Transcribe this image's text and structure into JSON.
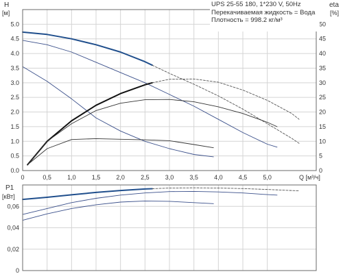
{
  "chart_data": [
    {
      "type": "line",
      "title": "UPS 25-55 180, 1*230 V, 50Hz",
      "notes": [
        "Перекачиваемая жидкость = Вода",
        "Плотность = 998.2 кг/м³"
      ],
      "xlabel": "Q [м³/ч]",
      "ylabel_left": "H",
      "ylabel_left_unit": "[м]",
      "ylabel_right": "eta",
      "ylabel_right_unit": "[%]",
      "xlim": [
        0,
        6.0
      ],
      "ylim_left": [
        0,
        5.5
      ],
      "ylim_right": [
        0,
        55
      ],
      "x_ticks": [
        0,
        0.5,
        1.0,
        1.5,
        2.0,
        2.5,
        3.0,
        3.5,
        4.0,
        4.5,
        5.0
      ],
      "x_tick_labels": [
        "0",
        "0,5",
        "1,0",
        "1,5",
        "2,0",
        "2,5",
        "3,0",
        "3,5",
        "4,0",
        "4,5",
        "5,0"
      ],
      "y_left_ticks": [
        0,
        0.5,
        1.0,
        1.5,
        2.0,
        2.5,
        3.0,
        3.5,
        4.0,
        4.5,
        5.0
      ],
      "y_left_tick_labels": [
        "0.0",
        "0.5",
        "1.0",
        "1.5",
        "2.0",
        "2.5",
        "3.0",
        "3.5",
        "4.0",
        "4.5",
        "5.0"
      ],
      "y_right_ticks": [
        0,
        5,
        10,
        15,
        20,
        25,
        30,
        35,
        40,
        45,
        50
      ],
      "y_right_tick_labels": [
        "0",
        "5",
        "10",
        "15",
        "20",
        "25",
        "30",
        "35",
        "40",
        "45",
        "50"
      ],
      "grid": true,
      "series": [
        {
          "axis": "left",
          "style": "bold-solid",
          "color": "#1f4e8c",
          "x": [
            0,
            0.5,
            1.0,
            1.5,
            2.0,
            2.5,
            2.65
          ],
          "y": [
            4.73,
            4.65,
            4.5,
            4.3,
            4.05,
            3.72,
            3.6
          ]
        },
        {
          "axis": "left",
          "style": "dashed",
          "color": "#555555",
          "x": [
            2.65,
            3.0,
            3.5,
            4.0,
            4.5,
            5.0,
            5.5,
            5.65
          ],
          "y": [
            3.6,
            3.32,
            2.95,
            2.55,
            2.1,
            1.6,
            1.1,
            0.93
          ]
        },
        {
          "axis": "left",
          "style": "thin",
          "color": "#3a4f8a",
          "x": [
            0,
            0.5,
            1.0,
            1.5,
            2.0,
            2.5,
            3.0,
            3.5,
            4.0,
            4.5,
            5.0,
            5.2
          ],
          "y": [
            4.45,
            4.3,
            4.05,
            3.7,
            3.35,
            3.0,
            2.6,
            2.2,
            1.75,
            1.3,
            0.9,
            0.8
          ]
        },
        {
          "axis": "left",
          "style": "thin",
          "color": "#3a4f8a",
          "x": [
            0,
            0.5,
            1.0,
            1.5,
            2.0,
            2.5,
            3.0,
            3.5,
            3.9
          ],
          "y": [
            3.55,
            3.05,
            2.45,
            1.8,
            1.35,
            1.0,
            0.75,
            0.55,
            0.47
          ]
        },
        {
          "axis": "right",
          "style": "bold-solid",
          "color": "#111111",
          "x": [
            0.1,
            0.5,
            1.0,
            1.5,
            2.0,
            2.5,
            2.65
          ],
          "y": [
            2,
            10,
            17,
            22.3,
            26.3,
            29.3,
            30
          ]
        },
        {
          "axis": "right",
          "style": "dashed",
          "color": "#555555",
          "x": [
            2.65,
            3.0,
            3.5,
            4.0,
            4.5,
            5.0,
            5.5,
            5.65
          ],
          "y": [
            30,
            31.2,
            31.3,
            30.2,
            27.5,
            24,
            19.5,
            17.5
          ]
        },
        {
          "axis": "right",
          "style": "thin",
          "color": "#333333",
          "x": [
            0.1,
            0.5,
            1.0,
            1.5,
            2.0,
            2.5,
            3.0,
            3.5,
            4.0,
            4.5,
            5.0,
            5.2
          ],
          "y": [
            2,
            10,
            16,
            20.5,
            23,
            24.2,
            24.3,
            23.5,
            21.8,
            19.5,
            16.5,
            15
          ]
        },
        {
          "axis": "right",
          "style": "thin",
          "color": "#333333",
          "x": [
            0.1,
            0.5,
            1.0,
            1.5,
            2.0,
            2.5,
            3.0,
            3.5,
            3.9
          ],
          "y": [
            2,
            7.5,
            10.6,
            10.9,
            10.7,
            10.5,
            10.2,
            8.9,
            7.8
          ]
        }
      ]
    },
    {
      "type": "line",
      "ylabel": "P1",
      "ylabel_unit": "[кВт]",
      "xlim": [
        0,
        6.0
      ],
      "ylim": [
        0,
        0.08
      ],
      "y_ticks": [
        0,
        0.02,
        0.04,
        0.06
      ],
      "y_tick_labels": [
        "0",
        "0,02",
        "0,04",
        "0,06"
      ],
      "grid": true,
      "series": [
        {
          "style": "bold-solid",
          "color": "#1f4e8c",
          "x": [
            0,
            0.5,
            1.0,
            1.5,
            2.0,
            2.5,
            2.65
          ],
          "y": [
            0.0665,
            0.0685,
            0.0708,
            0.073,
            0.0748,
            0.0762,
            0.0765
          ]
        },
        {
          "style": "dashed",
          "color": "#555555",
          "x": [
            2.65,
            3.0,
            3.5,
            4.0,
            4.5,
            5.0,
            5.65
          ],
          "y": [
            0.0765,
            0.0771,
            0.0773,
            0.0771,
            0.0766,
            0.0758,
            0.0745
          ]
        },
        {
          "style": "thin",
          "color": "#3a4f8a",
          "x": [
            0,
            0.5,
            1.0,
            1.5,
            2.0,
            2.5,
            3.0,
            3.5,
            4.0,
            4.5,
            5.0,
            5.2
          ],
          "y": [
            0.0525,
            0.058,
            0.0635,
            0.0675,
            0.0705,
            0.0725,
            0.0738,
            0.074,
            0.0735,
            0.0725,
            0.071,
            0.0705
          ]
        },
        {
          "style": "thin",
          "color": "#3a4f8a",
          "x": [
            0,
            0.5,
            1.0,
            1.5,
            2.0,
            2.5,
            3.0,
            3.5,
            3.9
          ],
          "y": [
            0.047,
            0.053,
            0.058,
            0.0615,
            0.064,
            0.065,
            0.0647,
            0.0635,
            0.0625
          ]
        }
      ]
    }
  ]
}
